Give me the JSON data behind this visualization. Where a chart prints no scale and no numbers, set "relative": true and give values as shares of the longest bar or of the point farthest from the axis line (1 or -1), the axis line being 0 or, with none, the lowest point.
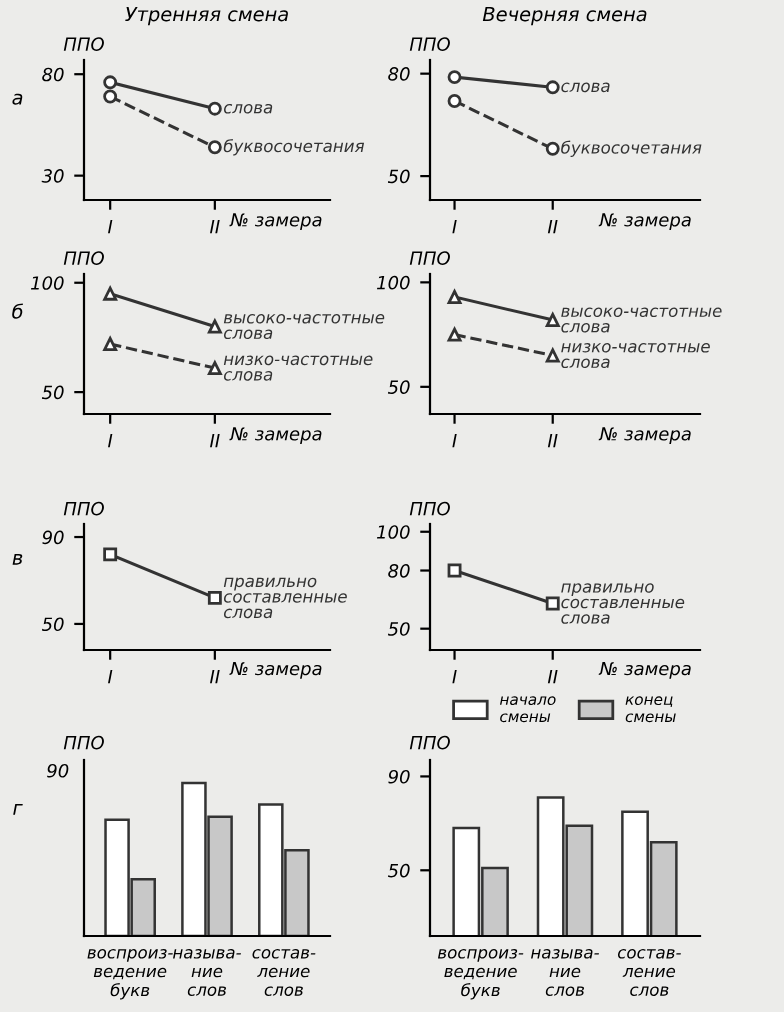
{
  "chart_data": [
    {
      "type": "line",
      "title": "Утренняя смена",
      "ylabel": "ППО",
      "xlabel": "№ замера",
      "annotations": [
        "а"
      ],
      "categories": [
        "I",
        "II"
      ],
      "ylim": [
        18,
        87
      ],
      "yticks": [
        30,
        80
      ],
      "grid": false,
      "series": [
        {
          "name": "слова",
          "color": "#333333",
          "values": [
            76,
            63
          ],
          "marker": "circle",
          "line_style": "solid"
        },
        {
          "name": "буквосочетания",
          "color": "#333333",
          "values": [
            69,
            44
          ],
          "marker": "circle",
          "line_style": "dashed"
        }
      ]
    },
    {
      "type": "line",
      "title": "Вечерняя смена",
      "ylabel": "ППО",
      "xlabel": "№ замера",
      "categories": [
        "I",
        "II"
      ],
      "ylim": [
        43,
        84
      ],
      "yticks": [
        50,
        80
      ],
      "grid": false,
      "series": [
        {
          "name": "слова",
          "color": "#333333",
          "values": [
            79,
            76
          ],
          "marker": "circle",
          "line_style": "solid"
        },
        {
          "name": "буквосочетания",
          "color": "#333333",
          "values": [
            72,
            58
          ],
          "marker": "circle",
          "line_style": "dashed"
        }
      ]
    },
    {
      "type": "line",
      "ylabel": "ППО",
      "xlabel": "№ замера",
      "annotations": [
        "б"
      ],
      "categories": [
        "I",
        "II"
      ],
      "ylim": [
        40,
        104
      ],
      "yticks": [
        50,
        100
      ],
      "grid": false,
      "series": [
        {
          "name": "высоко-частотные\nслова",
          "color": "#333333",
          "values": [
            95,
            80
          ],
          "marker": "triangle",
          "line_style": "solid"
        },
        {
          "name": "низко-частотные\nслова",
          "color": "#333333",
          "values": [
            72,
            61
          ],
          "marker": "triangle",
          "line_style": "dashed"
        }
      ]
    },
    {
      "type": "line",
      "ylabel": "ППО",
      "xlabel": "№ замера",
      "categories": [
        "I",
        "II"
      ],
      "ylim": [
        37,
        104
      ],
      "yticks": [
        50,
        100
      ],
      "grid": false,
      "series": [
        {
          "name": "высоко-частотные\nслова",
          "color": "#333333",
          "values": [
            93,
            82
          ],
          "marker": "triangle",
          "line_style": "solid"
        },
        {
          "name": "низко-частотные\nслова",
          "color": "#333333",
          "values": [
            75,
            65
          ],
          "marker": "triangle",
          "line_style": "dashed"
        }
      ]
    },
    {
      "type": "line",
      "ylabel": "ППО",
      "xlabel": "№ замера",
      "annotations": [
        "в"
      ],
      "categories": [
        "I",
        "II"
      ],
      "ylim": [
        38,
        96
      ],
      "yticks": [
        50,
        90
      ],
      "grid": false,
      "series": [
        {
          "name": "правильно\nсоставленные\nслова",
          "color": "#333333",
          "values": [
            82,
            62
          ],
          "marker": "square",
          "line_style": "solid"
        }
      ]
    },
    {
      "type": "line",
      "ylabel": "ППО",
      "xlabel": "№ замера",
      "categories": [
        "I",
        "II"
      ],
      "ylim": [
        39,
        104
      ],
      "yticks": [
        50,
        80,
        100
      ],
      "grid": false,
      "series": [
        {
          "name": "правильно\nсоставленные\nслова",
          "color": "#333333",
          "values": [
            80,
            63
          ],
          "marker": "square",
          "line_style": "solid"
        }
      ]
    },
    {
      "type": "bar",
      "ylabel": "ППО",
      "annotations": [
        "г",
        "90"
      ],
      "relative": true,
      "categories": [
        "воспроиз-\nведение\nбукв",
        "называ-\nние\nслов",
        "состав-\nление\nслов"
      ],
      "grid": false,
      "series": [
        {
          "color": "#ffffff",
          "values": [
            0.76,
            1,
            0.86
          ]
        },
        {
          "color": "#c8c8c8",
          "values": [
            0.37,
            0.78,
            0.56
          ]
        }
      ]
    },
    {
      "type": "bar",
      "ylabel": "ППО",
      "categories": [
        "воспроиз-\nведение\nбукв",
        "называ-\nние\nслов",
        "состав-\nление\nслов"
      ],
      "ylim": [
        22,
        97
      ],
      "yticks": [
        50,
        90
      ],
      "legend": "top",
      "grid": false,
      "series": [
        {
          "name": "начало\nсмены",
          "color": "#ffffff",
          "values": [
            68,
            81,
            75
          ]
        },
        {
          "name": "конец\nсмены",
          "color": "#c8c8c8",
          "values": [
            51,
            69,
            62
          ]
        }
      ]
    }
  ]
}
